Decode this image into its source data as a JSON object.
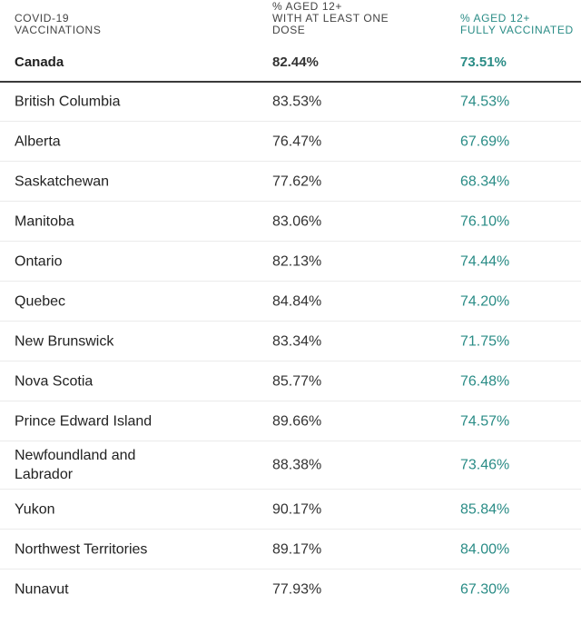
{
  "header": {
    "col1": "COVID-19\nVACCINATIONS",
    "col2": "% AGED 12+\nWITH AT LEAST ONE\nDOSE",
    "col3": "% AGED 12+\nFULLY VACCINATED"
  },
  "total": {
    "name": "Canada",
    "one_dose": "82.44%",
    "fully": "73.51%"
  },
  "rows": [
    {
      "name": "British Columbia",
      "one_dose": "83.53%",
      "fully": "74.53%"
    },
    {
      "name": "Alberta",
      "one_dose": "76.47%",
      "fully": "67.69%"
    },
    {
      "name": "Saskatchewan",
      "one_dose": "77.62%",
      "fully": "68.34%"
    },
    {
      "name": "Manitoba",
      "one_dose": "83.06%",
      "fully": "76.10%"
    },
    {
      "name": "Ontario",
      "one_dose": "82.13%",
      "fully": "74.44%"
    },
    {
      "name": "Quebec",
      "one_dose": "84.84%",
      "fully": "74.20%"
    },
    {
      "name": "New Brunswick",
      "one_dose": "83.34%",
      "fully": "71.75%"
    },
    {
      "name": "Nova Scotia",
      "one_dose": "85.77%",
      "fully": "76.48%"
    },
    {
      "name": "Prince Edward Island",
      "one_dose": "89.66%",
      "fully": "74.57%"
    },
    {
      "name": "Newfoundland and Labrador",
      "one_dose": "88.38%",
      "fully": "73.46%"
    },
    {
      "name": "Yukon",
      "one_dose": "90.17%",
      "fully": "85.84%"
    },
    {
      "name": "Northwest Territories",
      "one_dose": "89.17%",
      "fully": "84.00%"
    },
    {
      "name": "Nunavut",
      "one_dose": "77.93%",
      "fully": "67.30%"
    }
  ],
  "colors": {
    "accent": "#2a8c86",
    "text": "#222222",
    "divider": "#ebebeb",
    "rule": "#3a3a3a"
  }
}
